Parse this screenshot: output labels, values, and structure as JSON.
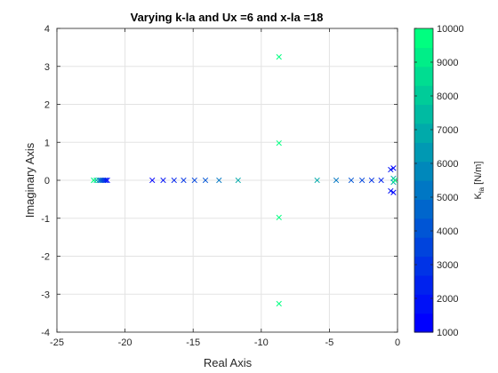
{
  "chart_data": {
    "type": "scatter",
    "title": "Varying k-la and Ux =6 and x-la =18",
    "xlabel": "Real Axis",
    "ylabel": "Imaginary Axis",
    "xlim": [
      -25,
      0
    ],
    "ylim": [
      -4,
      4
    ],
    "xticks": [
      "-25",
      "-20",
      "-15",
      "-10",
      "-5",
      "0"
    ],
    "yticks": [
      "-4",
      "-3",
      "-2",
      "-1",
      "0",
      "1",
      "2",
      "3",
      "4"
    ],
    "grid": true,
    "marker": "x",
    "colorbar": {
      "label": "K_la [N/m]",
      "label_base": "K",
      "label_sub": "la",
      "label_unit": " [N/m]",
      "min": 1000,
      "max": 10000,
      "ticks": [
        "1000",
        "2000",
        "3000",
        "4000",
        "5000",
        "6000",
        "7000",
        "8000",
        "9000",
        "10000"
      ],
      "levels": 16,
      "colormap": "winter",
      "color_low": "#0000ff",
      "color_high": "#00ff80"
    },
    "series": [
      {
        "k": 1000,
        "points": [
          [
            -21.3,
            0
          ],
          [
            -18.0,
            0
          ],
          [
            -0.3,
            0.32
          ],
          [
            -0.3,
            -0.32
          ]
        ]
      },
      {
        "k": 1600,
        "points": [
          [
            -21.4,
            0
          ],
          [
            -17.2,
            0
          ],
          [
            -0.5,
            0.28
          ],
          [
            -0.5,
            -0.28
          ]
        ]
      },
      {
        "k": 2200,
        "points": [
          [
            -21.5,
            0
          ],
          [
            -16.4,
            0
          ],
          [
            -1.2,
            0
          ]
        ]
      },
      {
        "k": 2800,
        "points": [
          [
            -21.6,
            0
          ],
          [
            -15.7,
            0
          ],
          [
            -1.9,
            0
          ]
        ]
      },
      {
        "k": 3400,
        "points": [
          [
            -21.7,
            0
          ],
          [
            -14.9,
            0
          ],
          [
            -2.6,
            0
          ]
        ]
      },
      {
        "k": 4000,
        "points": [
          [
            -21.8,
            0
          ],
          [
            -14.1,
            0
          ],
          [
            -3.4,
            0
          ]
        ]
      },
      {
        "k": 5000,
        "points": [
          [
            -21.9,
            0
          ],
          [
            -13.1,
            0
          ],
          [
            -4.5,
            0
          ]
        ]
      },
      {
        "k": 7000,
        "points": [
          [
            -22.1,
            0
          ],
          [
            -11.7,
            0
          ],
          [
            -5.9,
            0
          ],
          [
            -0.3,
            0.05
          ],
          [
            -0.3,
            -0.05
          ]
        ]
      },
      {
        "k": 9500,
        "points": [
          [
            -22.3,
            0
          ],
          [
            -8.7,
            0.98
          ],
          [
            -8.7,
            -0.98
          ],
          [
            -0.2,
            0
          ]
        ]
      },
      {
        "k": 10000,
        "points": [
          [
            -22.3,
            0
          ],
          [
            -8.7,
            3.25
          ],
          [
            -8.7,
            -3.25
          ]
        ]
      }
    ]
  }
}
